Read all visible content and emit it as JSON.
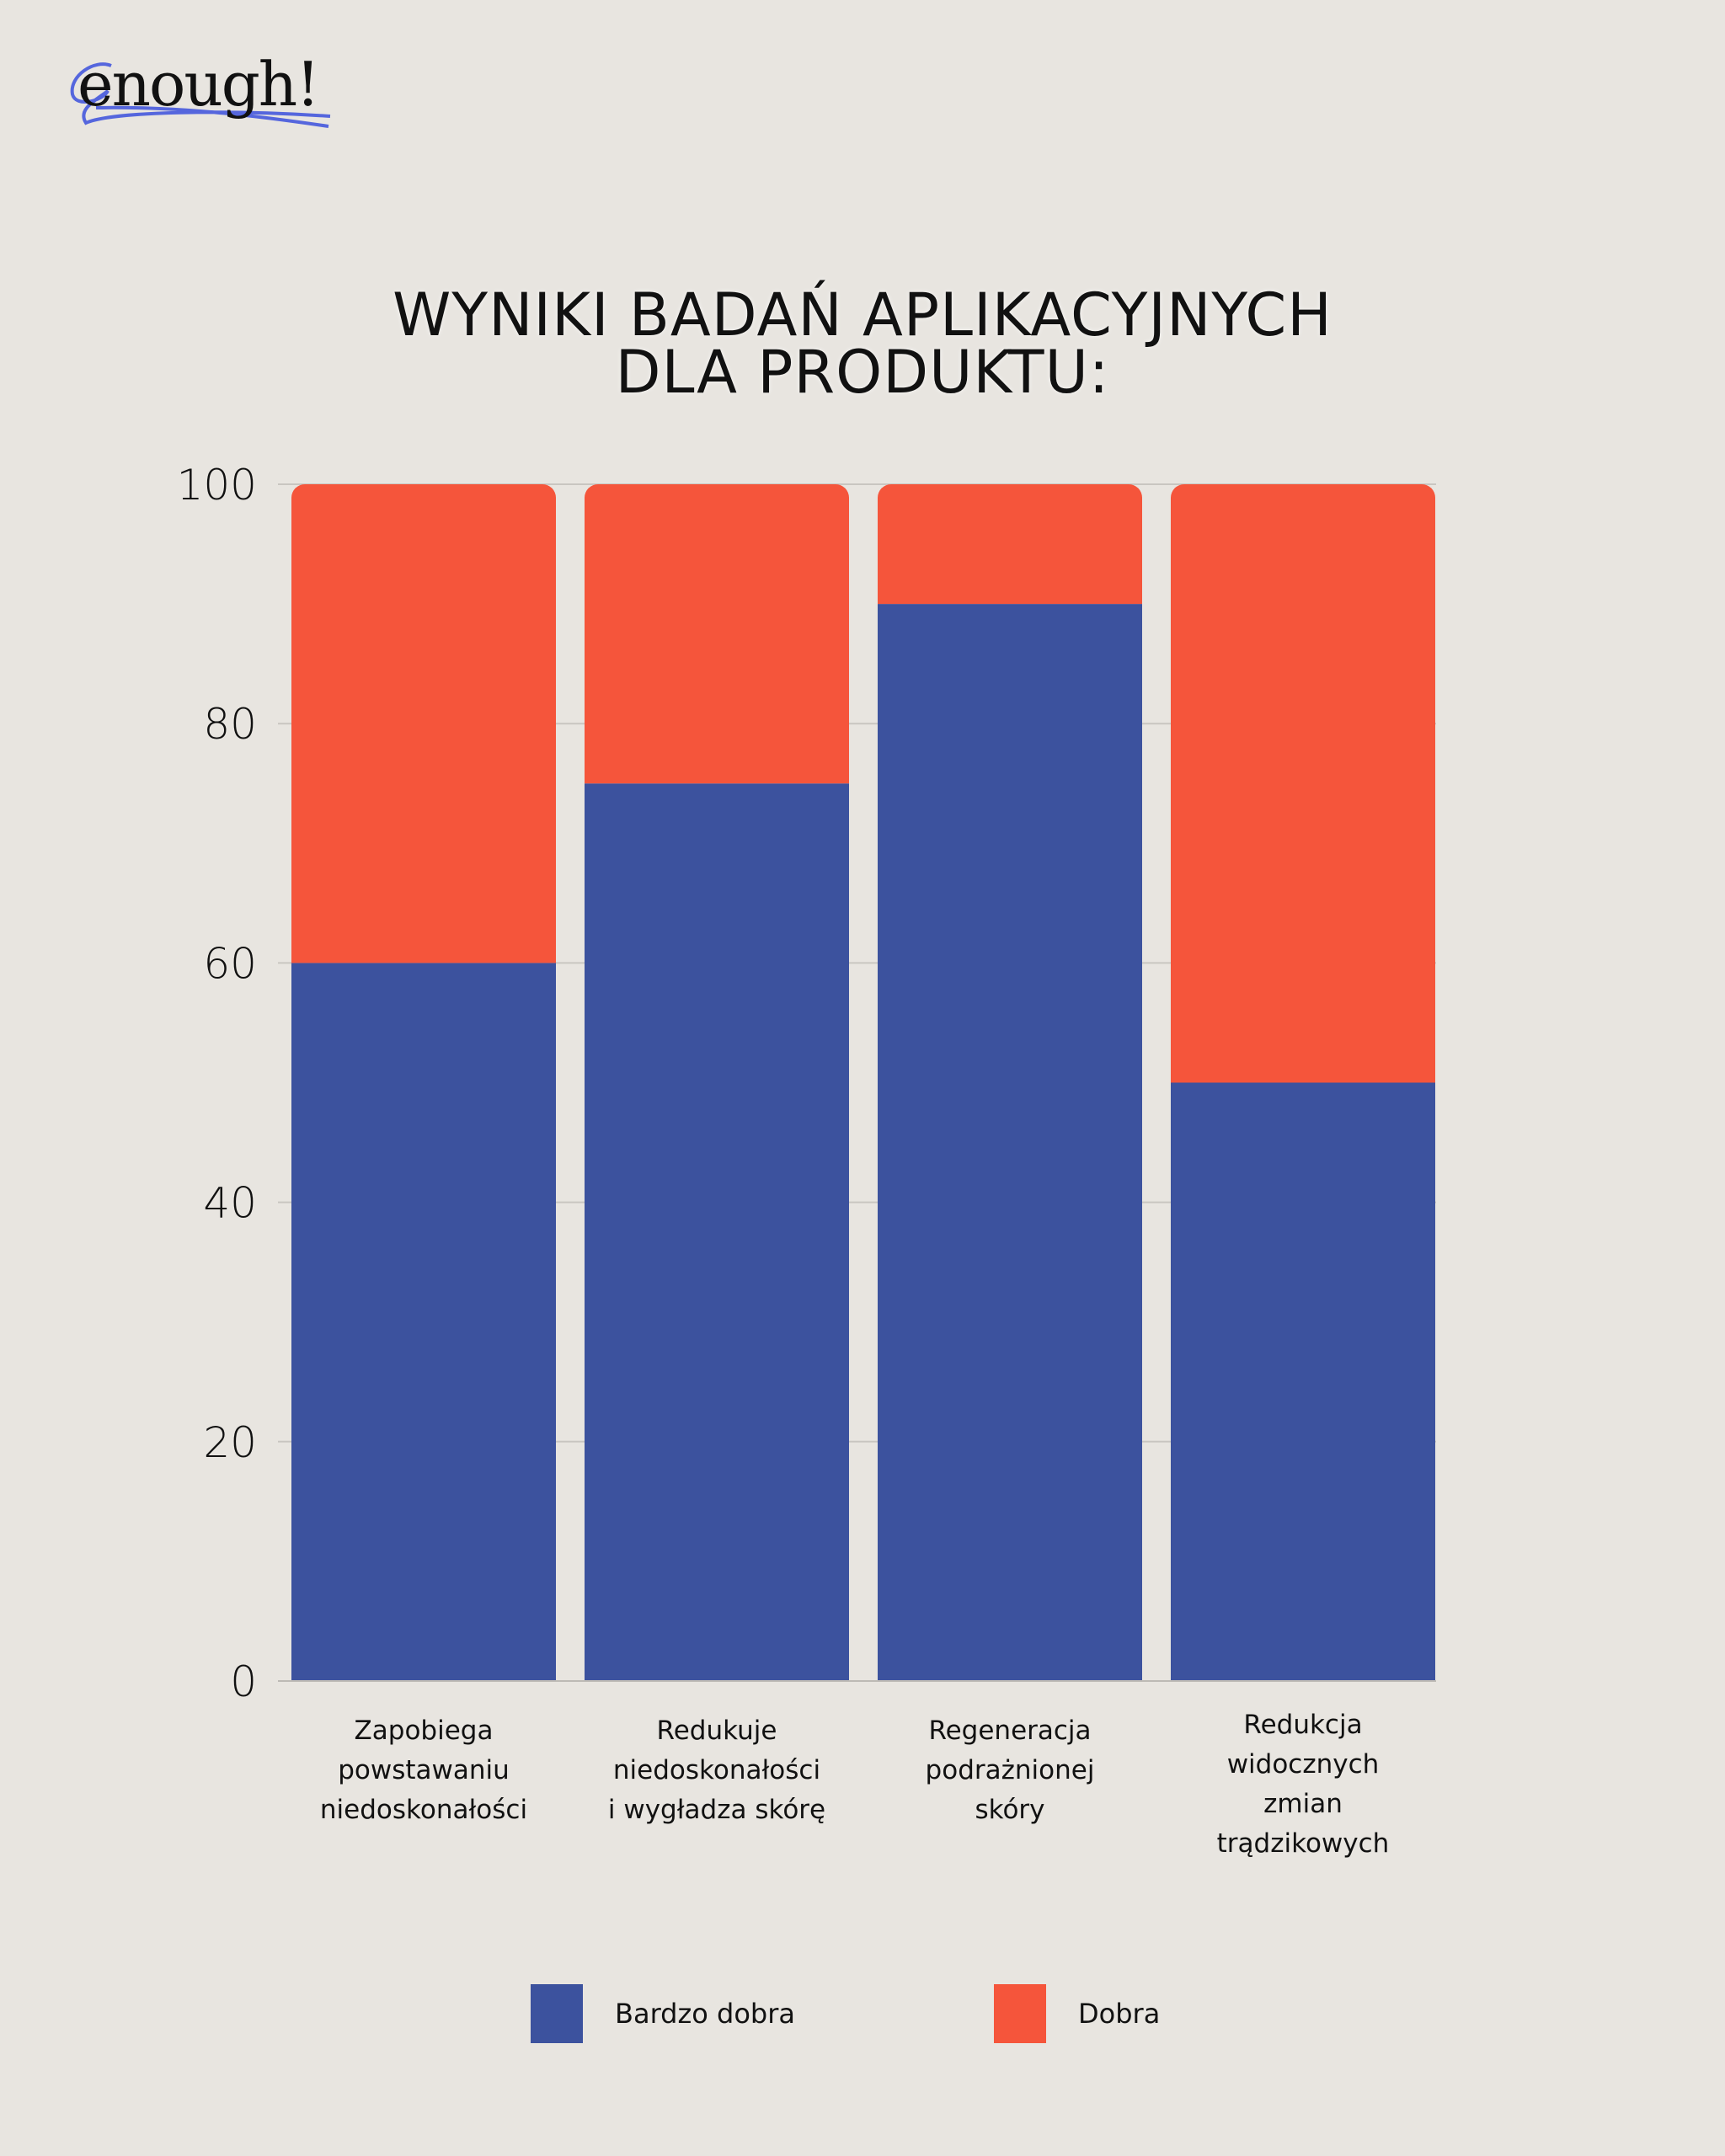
{
  "brand": {
    "logo_text": "enough!"
  },
  "title_lines": [
    "WYNIKI BADAŃ APLIKACYJNYCH",
    "DLA PRODUKTU:"
  ],
  "colors": {
    "background": "#e8e5e0",
    "bardzo_dobra": "#3c529e",
    "dobra": "#f5553b"
  },
  "chart_data": {
    "type": "bar",
    "stacked": true,
    "title": "WYNIKI BADAŃ APLIKACYJNYCH DLA PRODUKTU:",
    "categories": [
      [
        "Zapobiega",
        "powstawaniu",
        "niedoskonałości"
      ],
      [
        "Redukuje",
        "niedoskonałości",
        "i wygładza skórę"
      ],
      [
        "Regeneracja",
        "podrażnionej",
        "skóry"
      ],
      [
        "Redukcja",
        "widocznych",
        "zmian",
        "trądzikowych"
      ]
    ],
    "series": [
      {
        "name": "Bardzo dobra",
        "color": "#3c529e",
        "values": [
          60,
          75,
          90,
          50
        ]
      },
      {
        "name": "Dobra",
        "color": "#f5553b",
        "values": [
          40,
          25,
          10,
          50
        ]
      }
    ],
    "yticks": [
      "0",
      "20",
      "40",
      "60",
      "80",
      "100"
    ],
    "ylim": [
      0,
      100
    ],
    "grid": true,
    "legend": "bottom-center",
    "xlabel": "",
    "ylabel": ""
  }
}
